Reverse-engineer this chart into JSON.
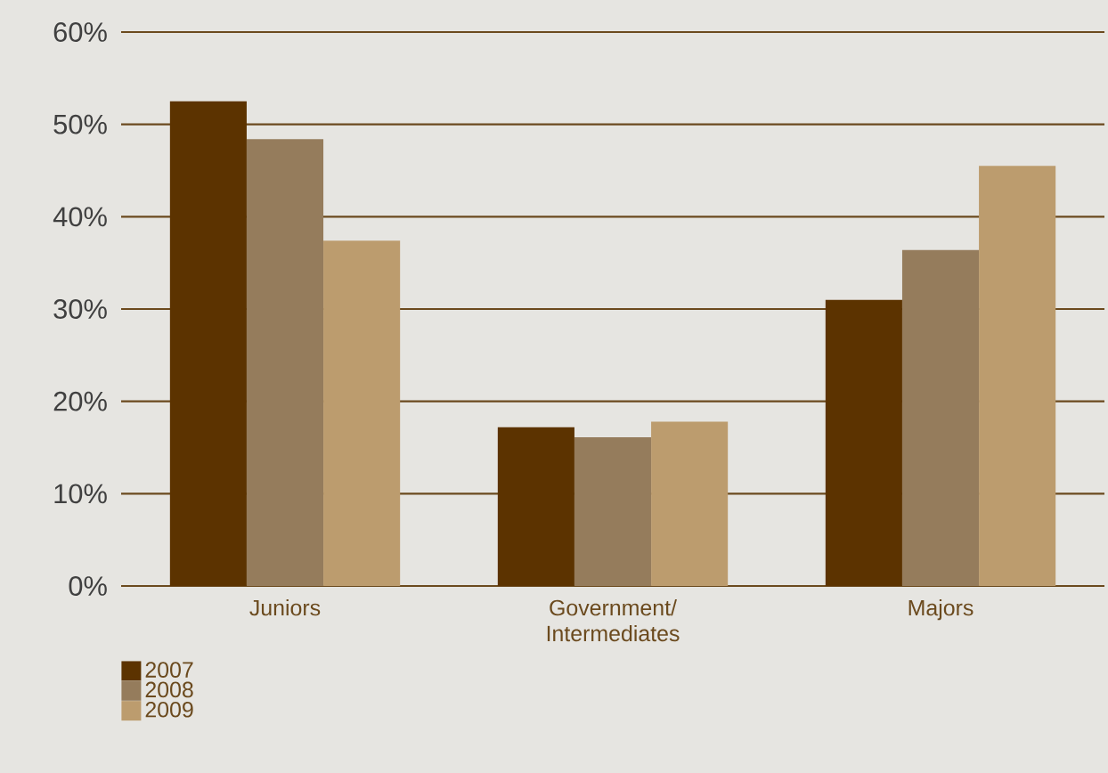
{
  "chart_data": {
    "type": "bar",
    "categories": [
      "Juniors",
      "Government/ Intermediates",
      "Majors"
    ],
    "series": [
      {
        "name": "2007",
        "color": "#5c3300",
        "values": [
          52.5,
          17.2,
          31.0
        ]
      },
      {
        "name": "2008",
        "color": "#957c5c",
        "values": [
          48.4,
          16.1,
          36.4
        ]
      },
      {
        "name": "2009",
        "color": "#bc9c6e",
        "values": [
          37.4,
          17.8,
          45.5
        ]
      }
    ],
    "ylim": [
      0,
      60
    ],
    "yticks": [
      {
        "value": 0,
        "label": "0%"
      },
      {
        "value": 10,
        "label": "10%"
      },
      {
        "value": 20,
        "label": "20%"
      },
      {
        "value": 30,
        "label": "30%"
      },
      {
        "value": 40,
        "label": "40%"
      },
      {
        "value": 50,
        "label": "50%"
      },
      {
        "value": 60,
        "label": "60%"
      }
    ],
    "grid": "y",
    "legend": "bottom left"
  }
}
